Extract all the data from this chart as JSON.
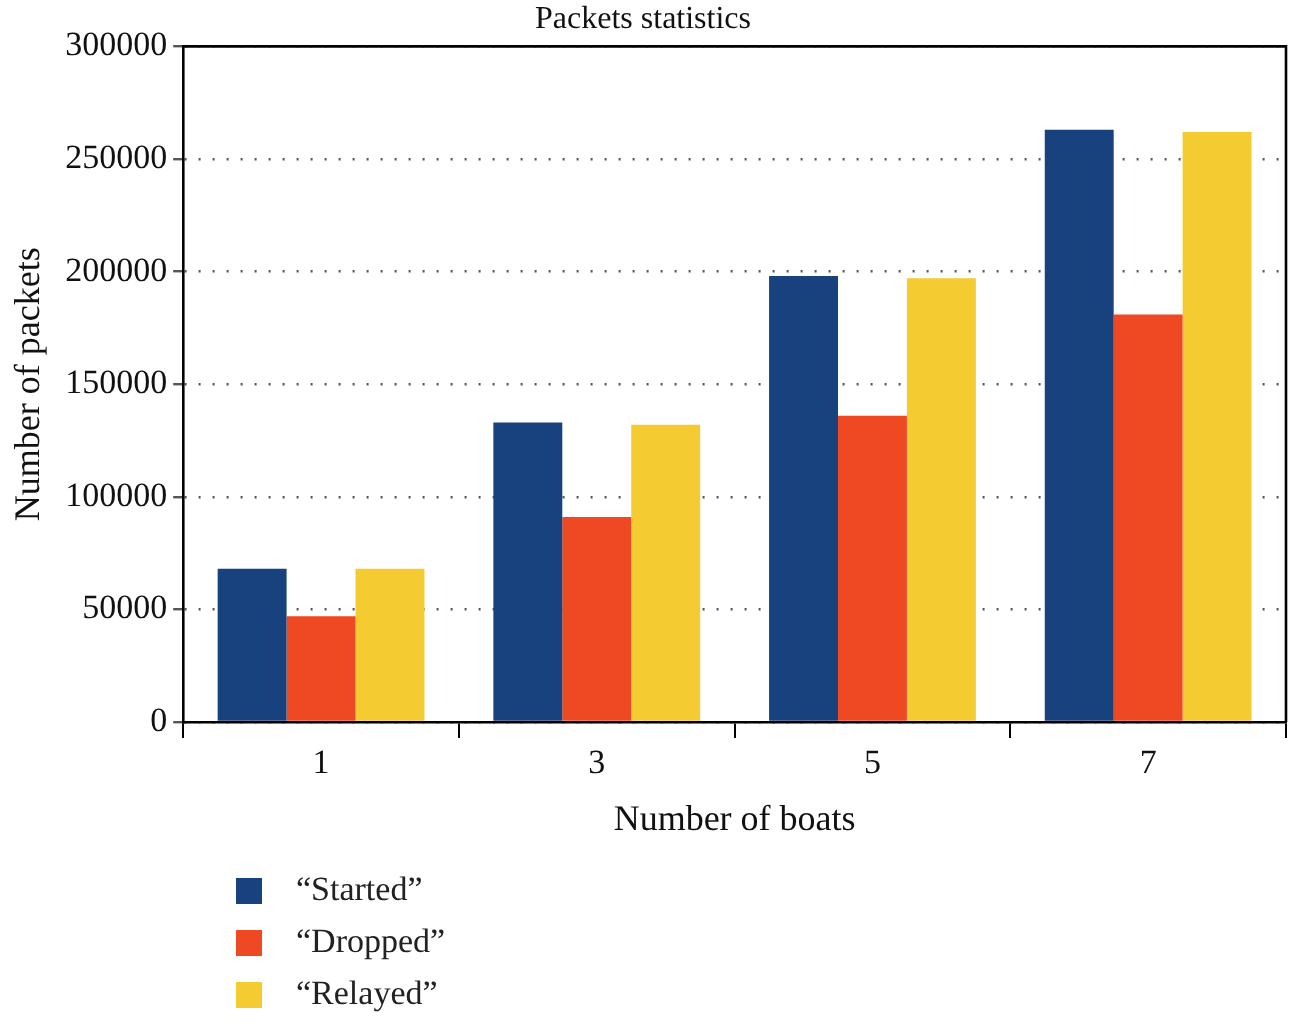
{
  "chart_data": {
    "type": "bar",
    "title": "Packets statistics",
    "xlabel": "Number of boats",
    "ylabel": "Number of packets",
    "categories": [
      "1",
      "3",
      "5",
      "7"
    ],
    "series": [
      {
        "name": "“Started”",
        "color": "#17427e",
        "values": [
          68000,
          133000,
          198000,
          263000
        ]
      },
      {
        "name": "“Dropped”",
        "color": "#ef4923",
        "values": [
          47000,
          91000,
          136000,
          181000
        ]
      },
      {
        "name": "“Relayed”",
        "color": "#f4cb30",
        "values": [
          68000,
          132000,
          197000,
          262000
        ]
      }
    ],
    "ylim": [
      0,
      300000
    ],
    "yticks": [
      0,
      50000,
      100000,
      150000,
      200000,
      250000,
      300000
    ],
    "grid": "y",
    "legend": "bottom left"
  }
}
